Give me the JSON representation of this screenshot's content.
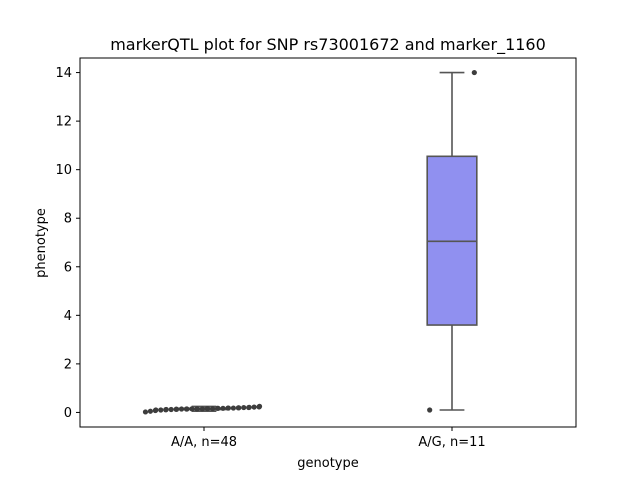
{
  "chart_data": {
    "type": "box",
    "title": "markerQTL plot for SNP rs73001672 and marker_1160",
    "xlabel": "genotype",
    "ylabel": "phenotype",
    "ylim": [
      -0.6,
      14.6
    ],
    "yticks": [
      0,
      2,
      4,
      6,
      8,
      10,
      12,
      14
    ],
    "grid": false,
    "colors": {
      "box_fill": "#9090f0",
      "box_edge": "#555555",
      "frame": "#000000",
      "point": "#3d3d3d"
    },
    "categories": [
      "A/A, n=48",
      "A/G, n=11"
    ],
    "boxes": [
      {
        "category": "A/A, n=48",
        "whislo": 0.05,
        "q1": 0.12,
        "median": 0.15,
        "q3": 0.17,
        "whishi": 0.25,
        "fliers": [
          0.02,
          0.05,
          0.08,
          0.1,
          0.1,
          0.11,
          0.12,
          0.12,
          0.13,
          0.13,
          0.14,
          0.14,
          0.14,
          0.15,
          0.15,
          0.15,
          0.15,
          0.16,
          0.16,
          0.16,
          0.17,
          0.17,
          0.17,
          0.18,
          0.18,
          0.18,
          0.19,
          0.19,
          0.2,
          0.2,
          0.21,
          0.22,
          0.23,
          0.25
        ]
      },
      {
        "category": "A/G, n=11",
        "whislo": 0.1,
        "q1": 3.6,
        "median": 7.05,
        "q3": 10.55,
        "whishi": 14.0,
        "fliers": [
          0.1,
          14.0
        ]
      }
    ]
  }
}
